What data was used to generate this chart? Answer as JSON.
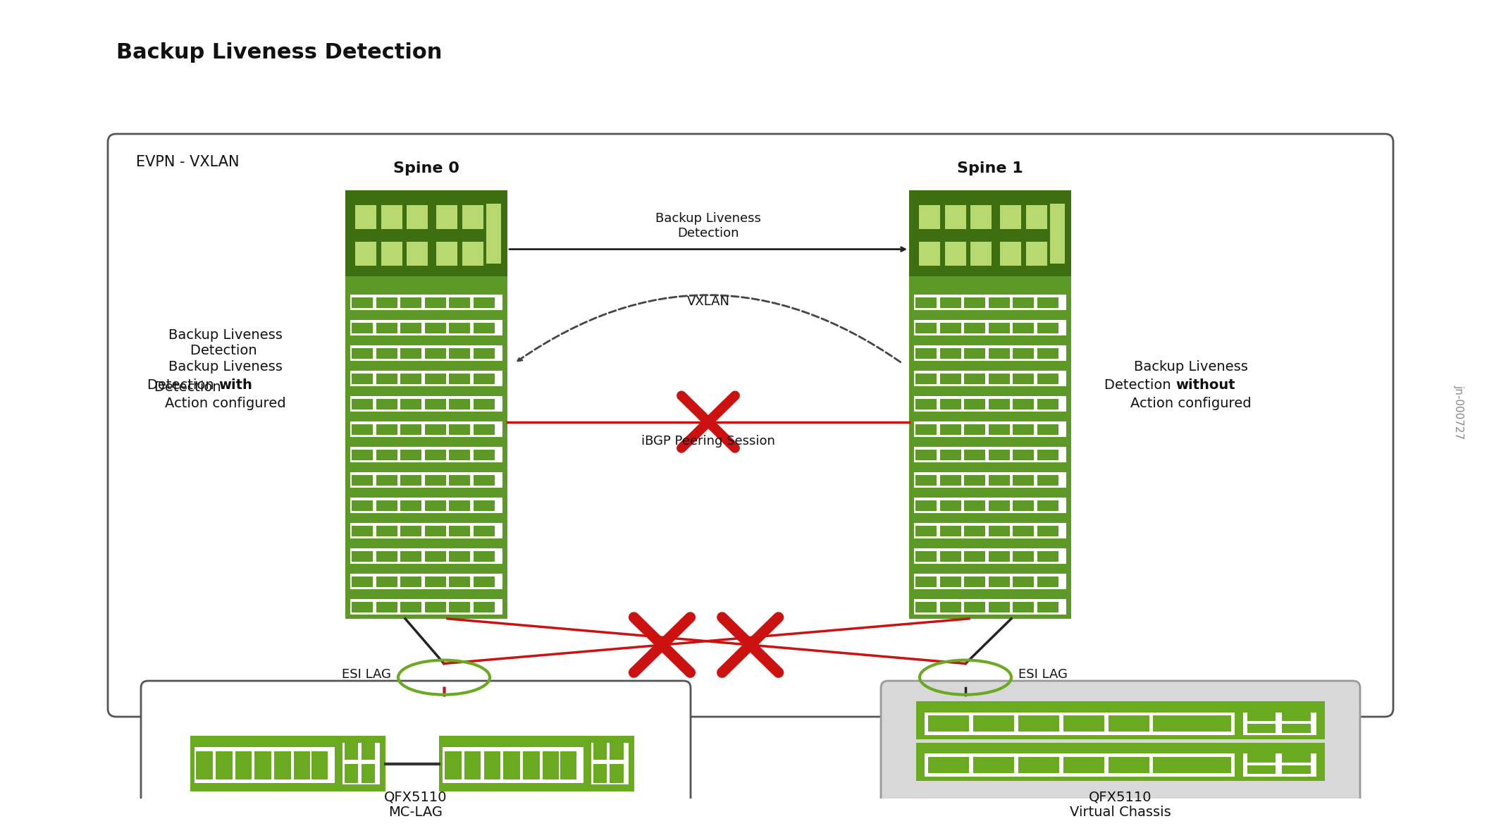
{
  "title": "Backup Liveness Detection",
  "subtitle": "jn-000727",
  "evpn_label": "EVPN - VXLAN",
  "spine0_label": "Spine 0",
  "spine1_label": "Spine 1",
  "bld_label": "Backup Liveness\nDetection",
  "vxlan_label": "VXLAN",
  "ibgp_label": "iBGP Peering Session",
  "esi_lag_label": "ESI LAG",
  "qfx_left_label": "QFX5110\nMC-LAG",
  "qfx_right_label": "QFX5110\nVirtual Chassis",
  "spine_green": "#5c9926",
  "spine_dark_green": "#3d6e10",
  "device_green": "#6aaa20",
  "background": "#ffffff",
  "red_x": "#cc1111",
  "line_dark": "#222222",
  "line_gray": "#666666"
}
